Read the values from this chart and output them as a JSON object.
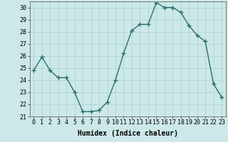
{
  "x": [
    0,
    1,
    2,
    3,
    4,
    5,
    6,
    7,
    8,
    9,
    10,
    11,
    12,
    13,
    14,
    15,
    16,
    17,
    18,
    19,
    20,
    21,
    22,
    23
  ],
  "y": [
    24.8,
    25.9,
    24.8,
    24.2,
    24.2,
    23.0,
    21.4,
    21.4,
    21.5,
    22.2,
    24.0,
    26.2,
    28.1,
    28.6,
    28.6,
    30.4,
    30.0,
    30.0,
    29.6,
    28.5,
    27.7,
    27.2,
    23.7,
    22.6
  ],
  "line_color": "#2d6e6e",
  "marker": "+",
  "markersize": 4,
  "linewidth": 1.0,
  "xlabel": "Humidex (Indice chaleur)",
  "xlim": [
    -0.5,
    23.5
  ],
  "ylim": [
    21,
    30.5
  ],
  "yticks": [
    21,
    22,
    23,
    24,
    25,
    26,
    27,
    28,
    29,
    30
  ],
  "xticks": [
    0,
    1,
    2,
    3,
    4,
    5,
    6,
    7,
    8,
    9,
    10,
    11,
    12,
    13,
    14,
    15,
    16,
    17,
    18,
    19,
    20,
    21,
    22,
    23
  ],
  "xtick_labels": [
    "0",
    "1",
    "2",
    "3",
    "4",
    "5",
    "6",
    "7",
    "8",
    "9",
    "10",
    "11",
    "12",
    "13",
    "14",
    "15",
    "16",
    "17",
    "18",
    "19",
    "20",
    "21",
    "22",
    "23"
  ],
  "bg_color": "#cce8e8",
  "grid_color": "#aad0d0",
  "tick_fontsize": 6,
  "xlabel_fontsize": 7,
  "xlabel_fontfamily": "monospace"
}
